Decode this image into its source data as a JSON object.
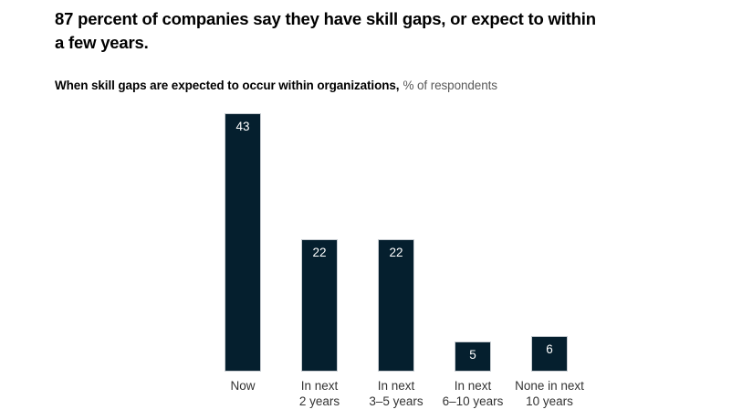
{
  "header": {
    "title_lines": [
      "87 percent of companies say they have skill gaps, or expect to within",
      "a few years."
    ],
    "subtitle_bold": "When skill gaps are expected to occur within organizations,",
    "subtitle_rest": "% of respondents"
  },
  "chart_data": {
    "type": "bar",
    "title": "87 percent of companies say they have skill gaps, or expect to within a few years.",
    "subtitle": "When skill gaps are expected to occur within organizations, % of respondents",
    "categories": [
      "Now",
      "In next\n2 years",
      "In next\n3–5 years",
      "In next\n6–10 years",
      "None in next\n10 years"
    ],
    "values": [
      43,
      22,
      22,
      5,
      6
    ],
    "xlabel": "",
    "ylabel": "% of respondents",
    "ylim": [
      0,
      45
    ],
    "grid": false,
    "legend": "none",
    "value_labels_shown": true,
    "bar_color": "#051f2e",
    "bar_border_color": "#c9ced3",
    "value_label_color": "#ffffff",
    "axis_label_color": "#333333"
  }
}
